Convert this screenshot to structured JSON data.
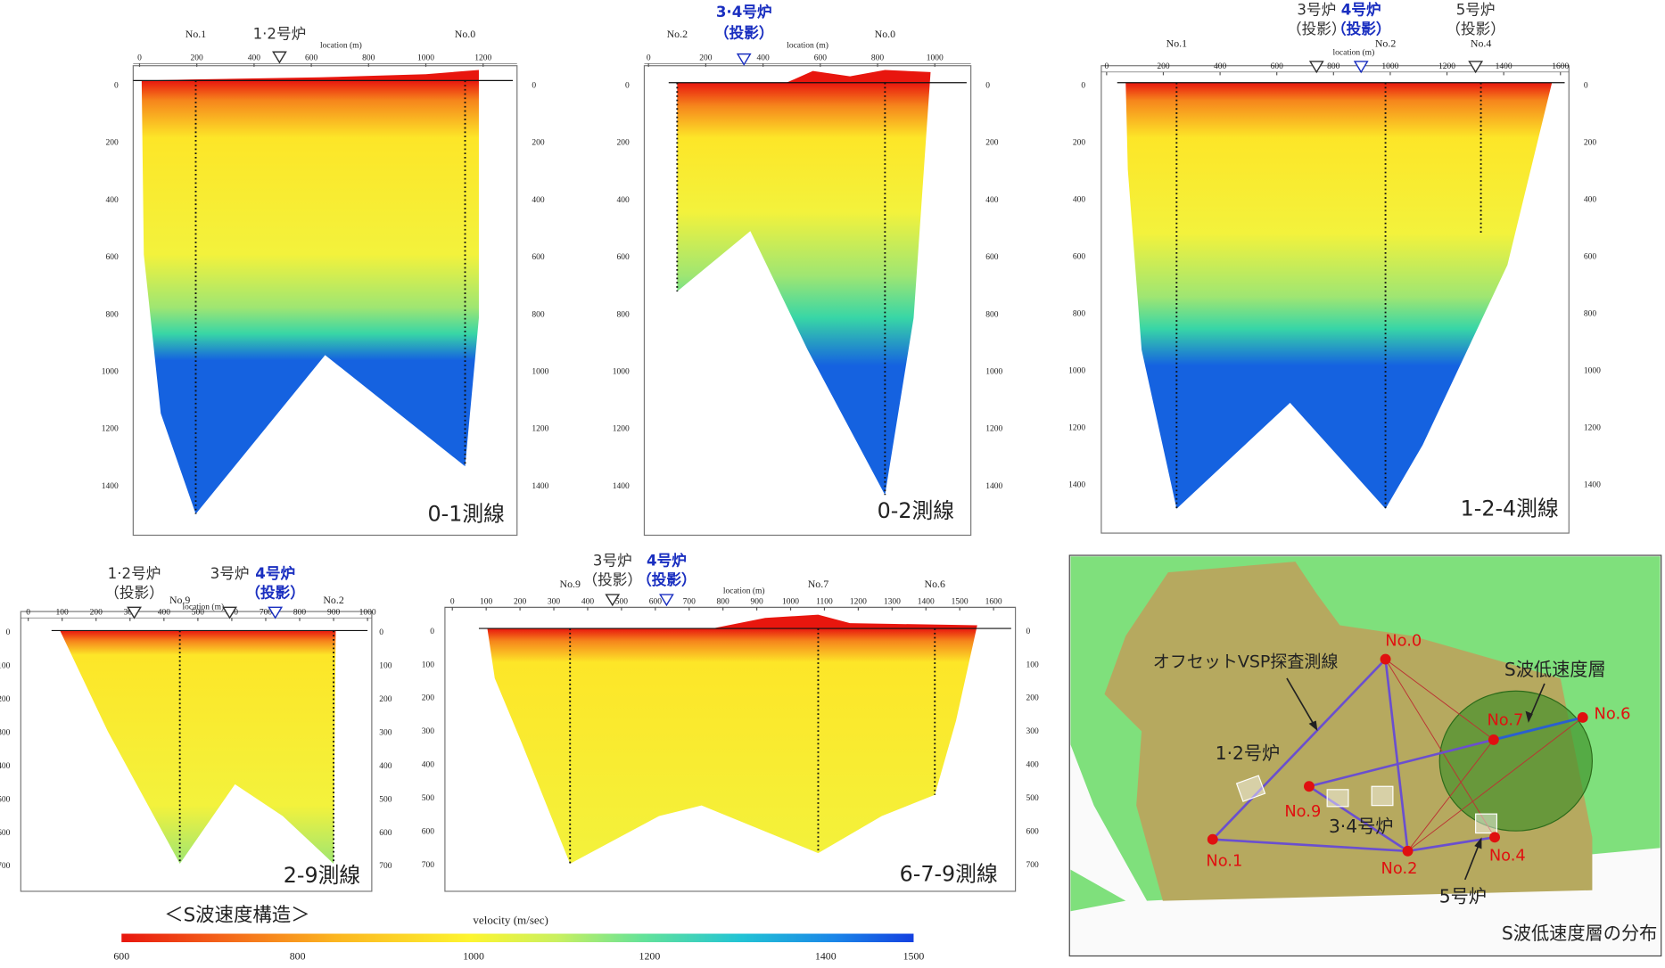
{
  "sections": [
    {
      "label": "0-1測線",
      "axis_label": "location (m)",
      "ticks": [
        0,
        200,
        400,
        600,
        800,
        1000,
        1200
      ],
      "depth_ticks": [
        0,
        200,
        400,
        600,
        800,
        1000,
        1200,
        1400
      ],
      "wells": [
        {
          "label": "No.1"
        },
        {
          "label": "No.0"
        }
      ],
      "reactors": [
        {
          "label": "1·2号炉",
          "highlight": false
        }
      ]
    },
    {
      "label": "0-2測線",
      "axis_label": "location (m)",
      "ticks": [
        0,
        200,
        400,
        600,
        800,
        1000
      ],
      "depth_ticks": [
        0,
        200,
        400,
        600,
        800,
        1000,
        1200,
        1400
      ],
      "wells": [
        {
          "label": "No.2"
        },
        {
          "label": "No.0"
        }
      ],
      "reactors": [
        {
          "label": "3·4号炉",
          "note": "（投影）",
          "highlight": true
        }
      ]
    },
    {
      "label": "1-2-4測線",
      "axis_label": "location (m)",
      "ticks": [
        0,
        200,
        400,
        600,
        800,
        1000,
        1200,
        1400,
        1600
      ],
      "depth_ticks": [
        0,
        200,
        400,
        600,
        800,
        1000,
        1200,
        1400
      ],
      "wells": [
        {
          "label": "No.1"
        },
        {
          "label": "No.2"
        },
        {
          "label": "No.4"
        }
      ],
      "reactors": [
        {
          "label": "3号炉",
          "note": "（投影）",
          "highlight": false
        },
        {
          "label": "4号炉",
          "note": "（投影）",
          "highlight": true
        },
        {
          "label": "5号炉",
          "note": "（投影）",
          "highlight": false
        }
      ]
    },
    {
      "label": "2-9測線",
      "axis_label": "location (m)",
      "ticks": [
        0,
        100,
        200,
        300,
        400,
        500,
        600,
        700,
        800,
        900,
        1000
      ],
      "depth_ticks": [
        0,
        100,
        200,
        300,
        400,
        500,
        600,
        700
      ],
      "wells": [
        {
          "label": "No.9"
        },
        {
          "label": "No.2"
        }
      ],
      "reactors": [
        {
          "label": "1·2号炉",
          "note": "（投影）",
          "highlight": false
        },
        {
          "label": "3号炉",
          "highlight": false
        },
        {
          "label": "4号炉",
          "note": "（投影）",
          "highlight": true
        }
      ]
    },
    {
      "label": "6-7-9測線",
      "axis_label": "location (m)",
      "ticks": [
        0,
        100,
        200,
        300,
        400,
        500,
        600,
        700,
        800,
        900,
        1000,
        1100,
        1200,
        1300,
        1400,
        1500,
        1600
      ],
      "depth_ticks": [
        0,
        100,
        200,
        300,
        400,
        500,
        600,
        700
      ],
      "wells": [
        {
          "label": "No.9"
        },
        {
          "label": "No.7"
        },
        {
          "label": "No.6"
        }
      ],
      "reactors": [
        {
          "label": "3号炉",
          "note": "（投影）",
          "highlight": false
        },
        {
          "label": "4号炉",
          "note": "（投影）",
          "highlight": true
        }
      ]
    }
  ],
  "colorbar": {
    "caption": "＜S波速度構造＞",
    "title": "velocity (m/sec)",
    "ticks": [
      600,
      800,
      1000,
      1200,
      1400,
      1500
    ]
  },
  "map": {
    "route_label": "オフセットVSP探査測線",
    "low_velocity_label": "S波低速度層",
    "reactors": [
      "1·2号炉",
      "3·4号炉",
      "5号炉"
    ],
    "nodes": [
      "No.0",
      "No.1",
      "No.2",
      "No.4",
      "No.6",
      "No.7",
      "No.9"
    ],
    "caption": "S波低速度層の分布"
  }
}
